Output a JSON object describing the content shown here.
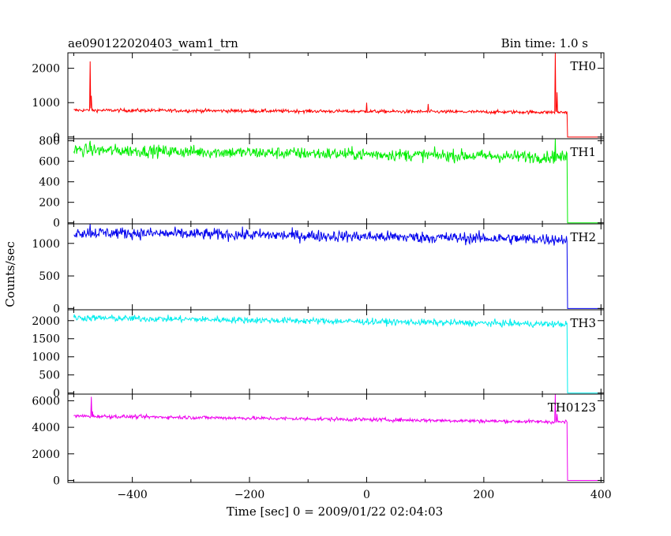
{
  "chart_data": {
    "type": "line",
    "title_left": "ae090122020403_wam1_trn",
    "title_right": "Bin time: 1.0 s",
    "xlabel": "Time [sec] 0 = 2009/01/22 02:04:03",
    "ylabel": "Counts/sec",
    "xlim": [
      -510,
      405
    ],
    "x_ticks": [
      -400,
      -200,
      0,
      200,
      400
    ],
    "x_tick_labels": [
      "−400",
      "−200",
      "0",
      "200",
      "400"
    ],
    "data_end_x": 342,
    "panels": [
      {
        "name": "TH0",
        "color": "#ff0000",
        "ylim": [
          -50,
          2450
        ],
        "y_ticks": [
          0,
          1000,
          2000
        ],
        "y_tick_labels": [
          "0",
          "1000",
          "2000"
        ],
        "level_start": 780,
        "level_end": 720,
        "noise": 25,
        "spikes": [
          [
            -472,
            2200
          ],
          [
            -470,
            1200
          ],
          [
            0,
            1000
          ],
          [
            105,
            960
          ],
          [
            322,
            2450
          ],
          [
            325,
            1300
          ]
        ]
      },
      {
        "name": "TH1",
        "color": "#00ee00",
        "ylim": [
          -10,
          820
        ],
        "y_ticks": [
          0,
          200,
          400,
          600,
          800
        ],
        "y_tick_labels": [
          "0",
          "200",
          "400",
          "600",
          "800"
        ],
        "level_start": 710,
        "level_end": 640,
        "noise": 30,
        "spikes": [
          [
            -472,
            800
          ],
          [
            322,
            820
          ]
        ]
      },
      {
        "name": "TH2",
        "color": "#0000ee",
        "ylim": [
          -20,
          1300
        ],
        "y_ticks": [
          0,
          500,
          1000
        ],
        "y_tick_labels": [
          "0",
          "500",
          "1000"
        ],
        "level_start": 1170,
        "level_end": 1060,
        "noise": 45,
        "spikes": [
          [
            -472,
            1300
          ]
        ]
      },
      {
        "name": "TH3",
        "color": "#00eeee",
        "ylim": [
          -30,
          2300
        ],
        "y_ticks": [
          0,
          500,
          1000,
          1500,
          2000
        ],
        "y_tick_labels": [
          "0",
          "500",
          "1000",
          "1500",
          "2000"
        ],
        "level_start": 2080,
        "level_end": 1900,
        "noise": 45,
        "spikes": []
      },
      {
        "name": "TH0123",
        "color": "#ee00ee",
        "ylim": [
          -150,
          6500
        ],
        "y_ticks": [
          0,
          2000,
          4000,
          6000
        ],
        "y_tick_labels": [
          "0",
          "2000",
          "4000",
          "6000"
        ],
        "level_start": 4850,
        "level_end": 4400,
        "noise": 70,
        "spikes": [
          [
            -470,
            6300
          ],
          [
            -468,
            5200
          ],
          [
            322,
            6500
          ],
          [
            325,
            5000
          ]
        ]
      }
    ]
  }
}
